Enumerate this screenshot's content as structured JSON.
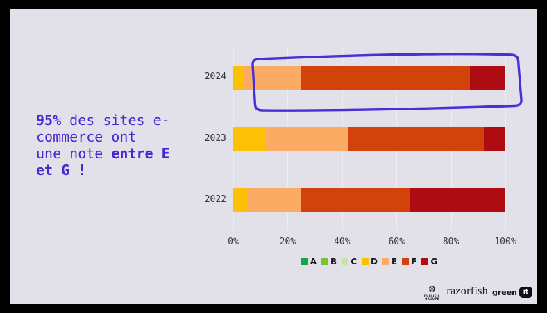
{
  "slide": {
    "background": "#e2e0e9",
    "frame_color": "#000000"
  },
  "callout": {
    "color": "#4b26d3",
    "full_text": "95% des sites e-commerce ont une note entre E et G !",
    "line1_bold": "95%",
    "line1_rest": " des sites e-",
    "line2": "commerce ont",
    "line3_rest": "une note ",
    "line3_bold": "entre E",
    "line4_bold": "et G !"
  },
  "chart_data": {
    "type": "bar",
    "variant": "horizontal-stacked",
    "title": "",
    "categories": [
      "2024",
      "2023",
      "2022"
    ],
    "series": [
      {
        "name": "A",
        "color": "#18a44d",
        "values": [
          0,
          0,
          0
        ]
      },
      {
        "name": "B",
        "color": "#7cc32b",
        "values": [
          0,
          0,
          0
        ]
      },
      {
        "name": "C",
        "color": "#c9e2ab",
        "values": [
          0,
          0,
          0
        ]
      },
      {
        "name": "D",
        "color": "#fcc105",
        "values": [
          4,
          12,
          5
        ]
      },
      {
        "name": "E",
        "color": "#fbab64",
        "values": [
          21,
          30,
          20
        ]
      },
      {
        "name": "F",
        "color": "#d2430c",
        "values": [
          62,
          50,
          40
        ]
      },
      {
        "name": "G",
        "color": "#ad0c12",
        "values": [
          13,
          8,
          35
        ]
      }
    ],
    "x_ticks": [
      "0%",
      "20%",
      "40%",
      "60%",
      "80%",
      "100%"
    ],
    "xlim": [
      0,
      100
    ],
    "grid": "vertical",
    "gridline_color": "#edebf4",
    "legend_position": "bottom",
    "annotation": {
      "type": "hand-drawn-rectangle",
      "target_category": "2024",
      "color": "#4531d8"
    }
  },
  "footer": {
    "publicis_label_line1": "PUBLICIS",
    "publicis_label_line2": "GROUPE",
    "razorfish_label": "razorfish",
    "greenit_label": "green",
    "greenit_badge": "it"
  }
}
